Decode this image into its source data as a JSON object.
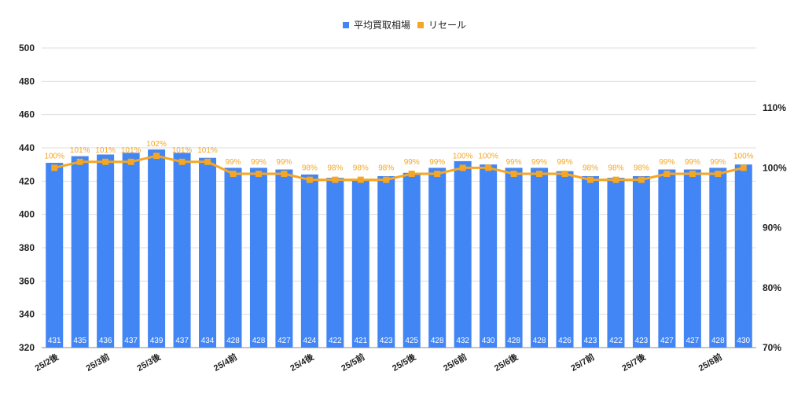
{
  "chart_data": {
    "type": "bar",
    "title": "",
    "categories": [
      "25/2後",
      "",
      "25/3前",
      "",
      "25/3後",
      "",
      "",
      "25/4前",
      "",
      "",
      "25/4後",
      "",
      "25/5前",
      "",
      "25/5後",
      "",
      "25/6前",
      "",
      "25/6後",
      "",
      "",
      "25/7前",
      "",
      "25/7後",
      "",
      "",
      "25/8前",
      ""
    ],
    "series": [
      {
        "name": "平均買取相場",
        "type": "bar",
        "axis": "left",
        "color": "#4285f4",
        "values": [
          431,
          435,
          436,
          437,
          439,
          437,
          434,
          428,
          428,
          427,
          424,
          422,
          421,
          423,
          425,
          428,
          432,
          430,
          428,
          428,
          426,
          423,
          422,
          423,
          427,
          427,
          428,
          430
        ]
      },
      {
        "name": "リセール",
        "type": "line",
        "axis": "right",
        "color": "#f5a623",
        "values": [
          100,
          101,
          101,
          101,
          102,
          101,
          101,
          99,
          99,
          99,
          98,
          98,
          98,
          98,
          99,
          99,
          100,
          100,
          99,
          99,
          99,
          98,
          98,
          98,
          99,
          99,
          99,
          100
        ],
        "labels": [
          "100%",
          "101%",
          "101%",
          "101%",
          "102%",
          "101%",
          "101%",
          "99%",
          "99%",
          "99%",
          "98%",
          "98%",
          "98%",
          "98%",
          "99%",
          "99%",
          "100%",
          "100%",
          "99%",
          "99%",
          "99%",
          "98%",
          "98%",
          "98%",
          "99%",
          "99%",
          "99%",
          "100%"
        ]
      }
    ],
    "y_left": {
      "ylim": [
        320,
        500
      ],
      "ticks": [
        "320",
        "340",
        "360",
        "380",
        "400",
        "420",
        "440",
        "460",
        "480",
        "500"
      ]
    },
    "y_right": {
      "ylim": [
        70,
        120
      ],
      "ticks": [
        "70%",
        "80%",
        "90%",
        "100%",
        "110%"
      ],
      "tick_values": [
        70,
        80,
        90,
        100,
        110
      ]
    },
    "legend": {
      "placement": "top-center",
      "items": [
        "平均買取相場",
        "リセール"
      ]
    },
    "grid": true
  }
}
